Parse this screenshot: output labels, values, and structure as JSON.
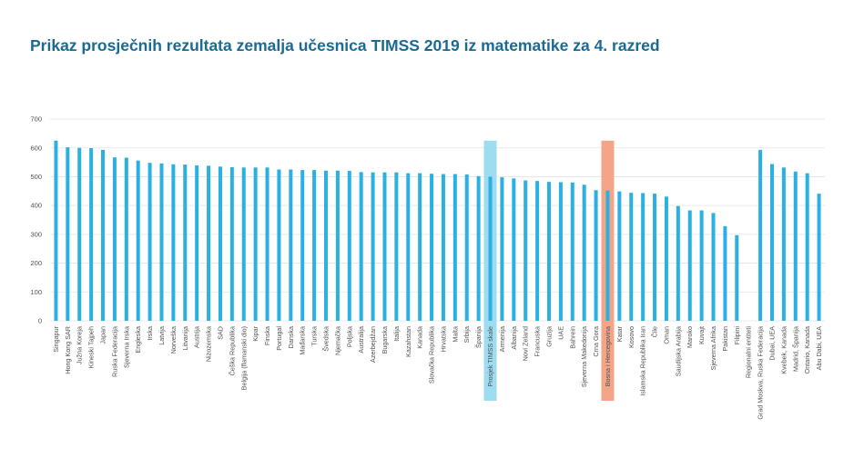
{
  "chart_data": {
    "type": "bar",
    "title": "Prikaz prosječnih rezultata zemalja učesnica TIMSS 2019 iz matematike za 4. razred",
    "ylim": [
      0,
      700
    ],
    "yticks": [
      0,
      100,
      200,
      300,
      400,
      500,
      600,
      700
    ],
    "grid": true,
    "legend": "none",
    "bar_color": "#2ab0e2",
    "highlights": [
      {
        "category": "Prosjek TIMSS skale",
        "color": "#9edcf2"
      },
      {
        "category": "Bosna i Hercegovina",
        "color": "#f3a588"
      }
    ],
    "categories": [
      "Singapur",
      "Hong Kong SAR",
      "Južna Koreja",
      "Kineski Tajpeh",
      "Japan",
      "Ruska Federacija",
      "Sjeverna Irska",
      "Engleska",
      "Irska",
      "Latvija",
      "Norveška",
      "Litvanija",
      "Austrija",
      "Nizozemska",
      "SAD",
      "Češka Republika",
      "Belgija (flamanski dio)",
      "Kipar",
      "Finska",
      "Portugal",
      "Danska",
      "Mađarska",
      "Turska",
      "Švedska",
      "Njemačka",
      "Poljska",
      "Australija",
      "Azerbejdžan",
      "Bugarska",
      "Italija",
      "Kazahstan",
      "Kanada",
      "Slovačka Republika",
      "Hrvatska",
      "Malta",
      "Srbija",
      "Španija",
      "Prosjek TIMSS skale",
      "Armenija",
      "Albanija",
      "Novi Zeland",
      "Francuska",
      "Gruzija",
      "UAE",
      "Bahrein",
      "Sjeverna Makedonija",
      "Crna Gora",
      "Bosna i Hercegovina",
      "Katar",
      "Kosovo",
      "Islamska Republika Iran",
      "Čile",
      "Oman",
      "Saudijska Arabija",
      "Maroko",
      "Kuvajt",
      "Sjeverna Afrika",
      "Pakistan",
      "Filipini",
      "Regionalni entiteti",
      "Grad Moskva, Ruska Federacija",
      "Dubai, UEA",
      "Kvebek, Kanada",
      "Madrid, Španija",
      "Ontario, Kanada",
      "Abu Dabi, UEA"
    ],
    "values": [
      625,
      602,
      600,
      599,
      593,
      567,
      566,
      556,
      548,
      546,
      543,
      542,
      539,
      538,
      535,
      533,
      532,
      532,
      532,
      525,
      525,
      523,
      523,
      521,
      521,
      520,
      516,
      515,
      515,
      515,
      512,
      512,
      510,
      509,
      509,
      508,
      502,
      500,
      498,
      494,
      487,
      485,
      482,
      481,
      480,
      472,
      453,
      452,
      449,
      444,
      443,
      441,
      431,
      398,
      383,
      383,
      374,
      328,
      297,
      null,
      593,
      544,
      532,
      518,
      512,
      441
    ]
  }
}
